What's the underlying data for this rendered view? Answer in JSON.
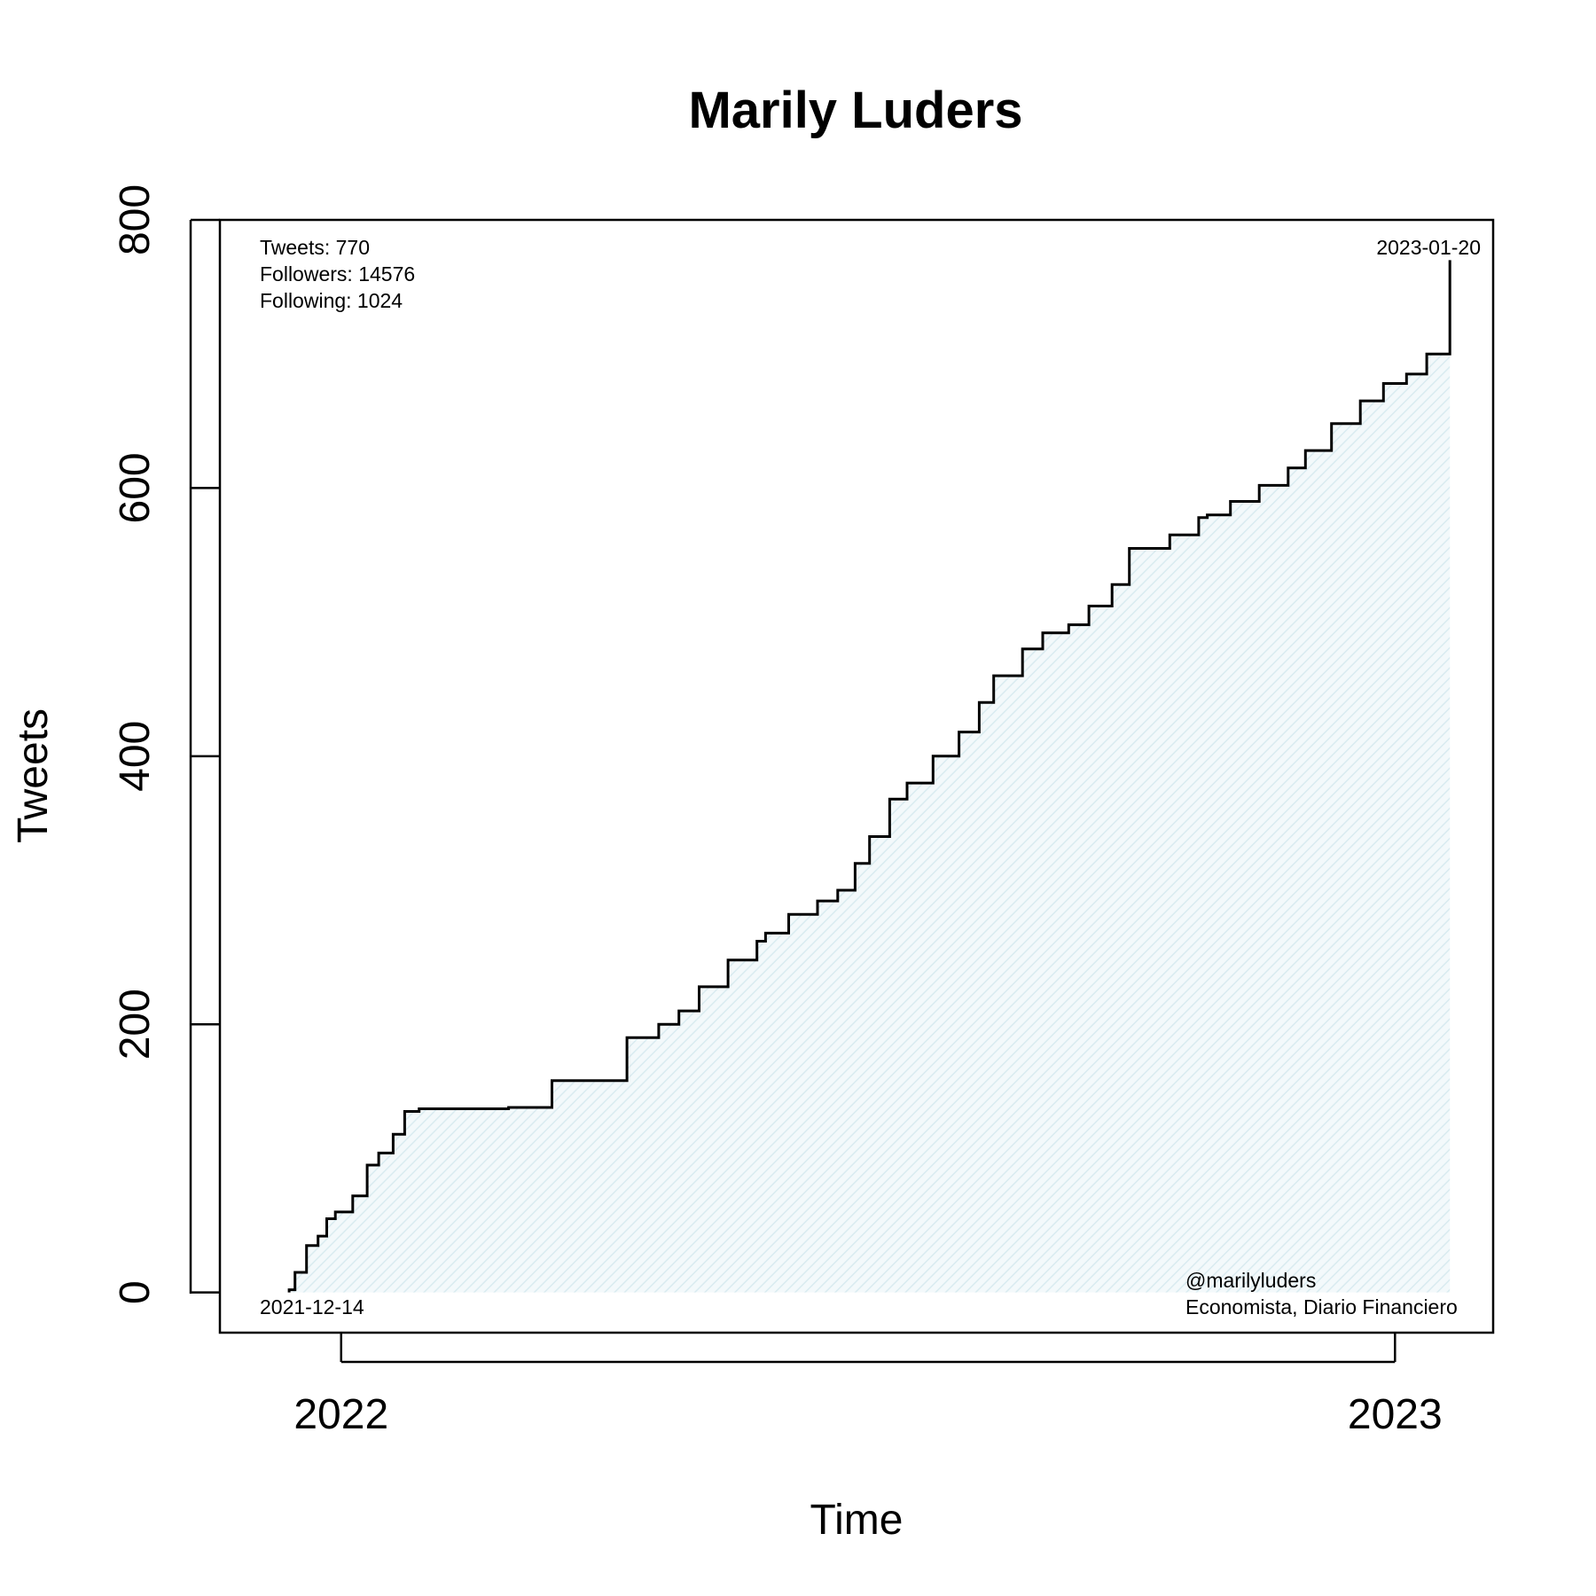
{
  "chart_data": {
    "type": "area",
    "title": "Marily Luders",
    "xlabel": "Time",
    "ylabel": "Tweets",
    "xlim": [
      "2021-11-20",
      "2023-02-04"
    ],
    "ylim": [
      -30,
      800
    ],
    "x_ticks": [
      {
        "date": "2022-01-01",
        "label": "2022"
      },
      {
        "date": "2023-01-01",
        "label": "2023"
      }
    ],
    "y_ticks": [
      0,
      200,
      400,
      600,
      800
    ],
    "grid": false,
    "colors": {
      "line": "#000000",
      "fill": "#e8f3f6"
    },
    "stats": {
      "tweets": "Tweets: 770",
      "followers": "Followers: 14576",
      "following": "Following: 1024"
    },
    "start_date": "2021-12-14",
    "end_date": "2023-01-20",
    "handle": "@marilyluders",
    "description": "Economista, Diario Financiero",
    "x": [
      "2021-12-14",
      "2021-12-16",
      "2021-12-20",
      "2021-12-24",
      "2021-12-27",
      "2021-12-30",
      "2022-01-05",
      "2022-01-10",
      "2022-01-14",
      "2022-01-19",
      "2022-01-23",
      "2022-01-28",
      "2022-02-01",
      "2022-02-05",
      "2022-02-08",
      "2022-02-15",
      "2022-02-28",
      "2022-03-15",
      "2022-04-10",
      "2022-04-21",
      "2022-04-28",
      "2022-05-05",
      "2022-05-15",
      "2022-05-25",
      "2022-05-28",
      "2022-06-05",
      "2022-06-15",
      "2022-06-22",
      "2022-06-28",
      "2022-07-03",
      "2022-07-10",
      "2022-07-16",
      "2022-07-25",
      "2022-08-03",
      "2022-08-10",
      "2022-08-15",
      "2022-08-25",
      "2022-09-01",
      "2022-09-10",
      "2022-09-17",
      "2022-09-25",
      "2022-10-01",
      "2022-10-15",
      "2022-10-25",
      "2022-10-28",
      "2022-11-05",
      "2022-11-15",
      "2022-11-25",
      "2022-12-01",
      "2022-12-10",
      "2022-12-20",
      "2022-12-28",
      "2023-01-05",
      "2023-01-12",
      "2023-01-20"
    ],
    "values": [
      2,
      15,
      35,
      42,
      55,
      60,
      72,
      95,
      104,
      118,
      135,
      137,
      137,
      137,
      137,
      137,
      138,
      158,
      190,
      200,
      210,
      228,
      248,
      262,
      268,
      282,
      292,
      300,
      320,
      340,
      368,
      380,
      400,
      418,
      440,
      460,
      480,
      492,
      498,
      512,
      528,
      555,
      565,
      578,
      580,
      590,
      602,
      615,
      628,
      648,
      665,
      678,
      685,
      700,
      770
    ]
  }
}
